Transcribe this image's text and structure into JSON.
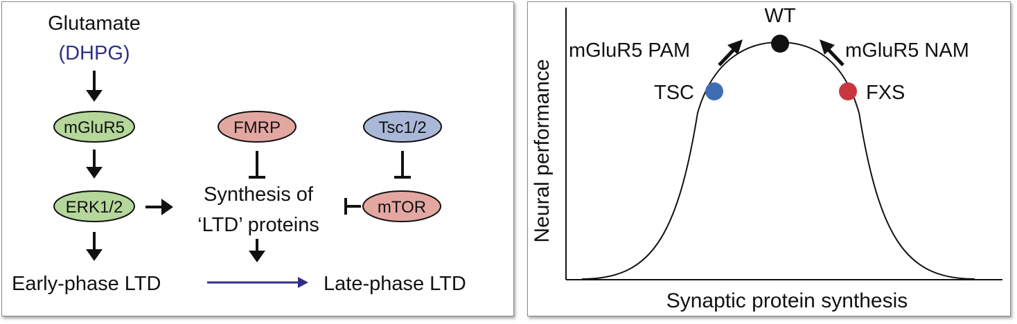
{
  "pathway": {
    "glutamate": "Glutamate",
    "dhpg": "(DHPG)",
    "mglur5": "mGluR5",
    "erk": "ERK1/2",
    "fmrp": "FMRP",
    "tsc12": "Tsc1/2",
    "mtor": "mTOR",
    "synthesis_line1": "Synthesis of",
    "synthesis_line2": "‘LTD’ proteins",
    "early_ltd": "Early-phase LTD",
    "late_ltd": "Late-phase LTD"
  },
  "plot": {
    "xlabel": "Synaptic protein synthesis",
    "ylabel": "Neural performance",
    "wt": "WT",
    "tsc": "TSC",
    "fxs": "FXS",
    "pam": "mGluR5 PAM",
    "nam": "mGluR5 NAM"
  },
  "colors": {
    "green_node": "#b5d79a",
    "red_node": "#e3a7a2",
    "blue_node": "#aab8d8",
    "dhpg_text": "#2f2f8a",
    "transition_arrow": "#2f2f8a",
    "tsc_point": "#3f6db3",
    "fxs_point": "#c8373f",
    "wt_point": "#111111"
  }
}
